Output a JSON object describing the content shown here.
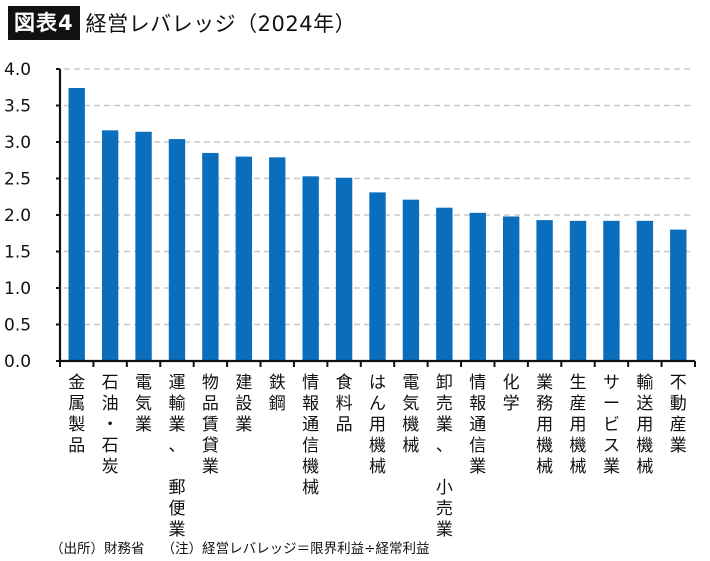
{
  "header": {
    "badge": "図表4",
    "title": "経営レバレッジ（2024年）"
  },
  "footer": {
    "source": "（出所）財務省",
    "note": "（注）経営レバレッジ＝限界利益÷経常利益"
  },
  "colors": {
    "bar": "#0a6ebd",
    "grid": "#c8c8c8",
    "axis": "#111111"
  },
  "chart_data": {
    "type": "bar",
    "title": "経営レバレッジ（2024年）",
    "xlabel": "",
    "ylabel": "",
    "ylim": [
      0,
      4.0
    ],
    "yticks": [
      "0.0",
      "0.5",
      "1.0",
      "1.5",
      "2.0",
      "2.5",
      "3.0",
      "3.5",
      "4.0"
    ],
    "ytick_values": [
      0,
      0.5,
      1.0,
      1.5,
      2.0,
      2.5,
      3.0,
      3.5,
      4.0
    ],
    "grid": "horizontal dashed",
    "legend": "none",
    "label_orientation": "vertical",
    "categories": [
      "金属製品",
      "石油・石炭",
      "電気業",
      "運輸業、　郵便業",
      "物品賃貸業",
      "建設業",
      "鉄鋼",
      "情報通信機械",
      "食料品",
      "はん用機械",
      "電気機械",
      "卸売業、　小売業",
      "情報通信業",
      "化学",
      "業務用機械",
      "生産用機械",
      "サービス業",
      "輸送用機械",
      "不動産業"
    ],
    "values": [
      3.74,
      3.16,
      3.14,
      3.04,
      2.85,
      2.8,
      2.79,
      2.53,
      2.51,
      2.31,
      2.21,
      2.1,
      2.03,
      1.98,
      1.93,
      1.92,
      1.92,
      1.92,
      1.8
    ]
  }
}
